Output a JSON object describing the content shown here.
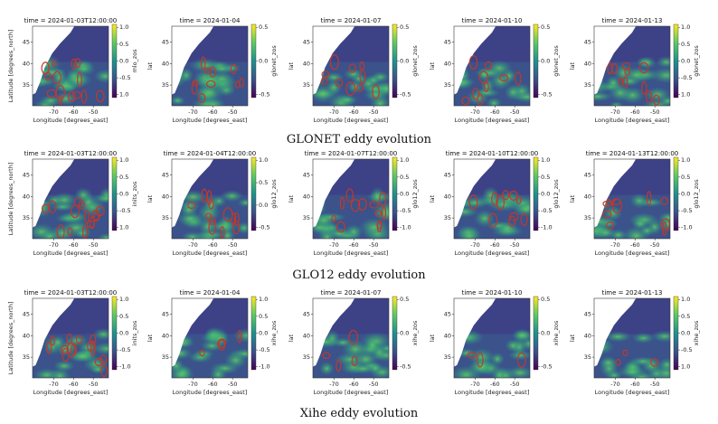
{
  "figure": {
    "rows": [
      {
        "caption": "GLONET eddy evolution",
        "panels": [
          {
            "title": "time = 2024-01-03T12:00:00",
            "ylabel": "Latitude [degrees_north]",
            "xlabel": "Longitude [degrees_east]",
            "cbar_label": "mlo_zos",
            "cbar_ticks": [
              "1.0",
              "0.5",
              "0.0",
              "-0.5",
              "1.0"
            ],
            "eddies": 14
          },
          {
            "title": "time = 2024-01-04",
            "ylabel": "lat",
            "xlabel": "Longitude [degrees_east]",
            "cbar_label": "glonet_zos",
            "cbar_ticks": [
              "0.5",
              "0.0",
              "-0.5"
            ],
            "eddies": 10
          },
          {
            "title": "time = 2024-01-07",
            "ylabel": "lat",
            "xlabel": "Longitude [degrees_east]",
            "cbar_label": "glonet_zos",
            "cbar_ticks": [
              "0.5",
              "0.0",
              "-0.5"
            ],
            "eddies": 10
          },
          {
            "title": "time = 2024-01-10",
            "ylabel": "lat",
            "xlabel": "Longitude [degrees_east]",
            "cbar_label": "glonet_zos",
            "cbar_ticks": [
              "0.5",
              "0.0",
              "-0.5"
            ],
            "eddies": 9
          },
          {
            "title": "time = 2024-01-13",
            "ylabel": "lat",
            "xlabel": "Longitude [degrees_east]",
            "cbar_label": "glonet_zos",
            "cbar_ticks": [
              "1.0",
              "0.5",
              "0.0",
              "-0.5",
              "1.0"
            ],
            "eddies": 10
          }
        ]
      },
      {
        "caption": "GLO12 eddy evolution",
        "panels": [
          {
            "title": "time = 2024-01-03T12:00:00",
            "ylabel": "Latitude [degrees_north]",
            "xlabel": "Longitude [degrees_east]",
            "cbar_label": "inits_zos",
            "cbar_ticks": [
              "1.0",
              "0.5",
              "0.0",
              "-0.5",
              "1.0"
            ],
            "eddies": 14
          },
          {
            "title": "time = 2024-01-04T12:00:00",
            "ylabel": "lat",
            "xlabel": "Longitude [degrees_east]",
            "cbar_label": "glo12_zos",
            "cbar_ticks": [
              "1.0",
              "0.5",
              "0.0",
              "-0.5"
            ],
            "eddies": 12
          },
          {
            "title": "time = 2024-01-07T12:00:00",
            "ylabel": "lat",
            "xlabel": "Longitude [degrees_east]",
            "cbar_label": "glo12_zos",
            "cbar_ticks": [
              "1.0",
              "0.5",
              "0.0",
              "-0.5",
              "-1.0"
            ],
            "eddies": 12
          },
          {
            "title": "time = 2024-01-10T12:00:00",
            "ylabel": "lat",
            "xlabel": "Longitude [degrees_east]",
            "cbar_label": "glo12_zos",
            "cbar_ticks": [
              "1.0",
              "0.5",
              "0.0",
              "-0.5",
              "-1.0"
            ],
            "eddies": 10
          },
          {
            "title": "time = 2024-01-13T12:00:00",
            "ylabel": "lat",
            "xlabel": "Longitude [degrees_east]",
            "cbar_label": "glo12_zos",
            "cbar_ticks": [
              "1.0",
              "0.5",
              "0.0",
              "-0.5",
              "-1.0"
            ],
            "eddies": 10
          }
        ]
      },
      {
        "caption": "Xihe eddy evolution",
        "panels": [
          {
            "title": "time = 2024-01-03T12:00:00",
            "ylabel": "Latitude [degrees_north]",
            "xlabel": "Longitude [degrees_east]",
            "cbar_label": "inits_zos",
            "cbar_ticks": [
              "1.0",
              "0.5",
              "0.0",
              "-0.5",
              "-1.0"
            ],
            "eddies": 14
          },
          {
            "title": "time = 2024-01-04",
            "ylabel": "lat",
            "xlabel": "Longitude [degrees_east]",
            "cbar_label": "xihe_zos",
            "cbar_ticks": [
              "1.0",
              "0.5",
              "0.0",
              "-0.5",
              "-1.0"
            ],
            "eddies": 4
          },
          {
            "title": "time = 2024-01-07",
            "ylabel": "lat",
            "xlabel": "Longitude [degrees_east]",
            "cbar_label": "xihe_zos",
            "cbar_ticks": [
              "0.5",
              "0.0",
              "-0.5"
            ],
            "eddies": 4
          },
          {
            "title": "time = 2024-01-10",
            "ylabel": "lat",
            "xlabel": "Longitude [degrees_east]",
            "cbar_label": "xihe_zos",
            "cbar_ticks": [
              "0.5",
              "0.0",
              "-0.5"
            ],
            "eddies": 3
          },
          {
            "title": "time = 2024-01-13",
            "ylabel": "lat",
            "xlabel": "Longitude [degrees_east]",
            "cbar_label": "xihe_zos",
            "cbar_ticks": [
              "1.0",
              "0.5",
              "0.0",
              "-0.5",
              "1.0"
            ],
            "eddies": 3
          }
        ]
      }
    ],
    "xticks": [
      "-70",
      "-60",
      "-50"
    ],
    "yticks": [
      "45",
      "40",
      "35"
    ],
    "colormap": [
      "#440154",
      "#3b528b",
      "#21908d",
      "#5dc963",
      "#fde725"
    ],
    "land_color": "#ffffff",
    "eddy_color": "#c0392b"
  }
}
